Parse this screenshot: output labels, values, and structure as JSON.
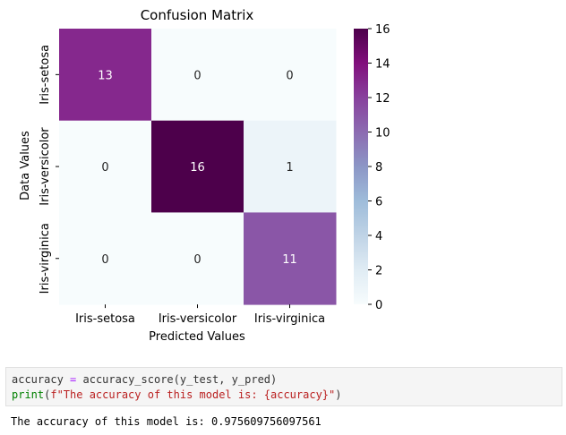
{
  "chart_data": {
    "type": "heatmap",
    "title": "Confusion Matrix",
    "xlabel": "Predicted Values",
    "ylabel": "Data Values",
    "x_categories": [
      "Iris-setosa",
      "Iris-versicolor",
      "Iris-virginica"
    ],
    "y_categories": [
      "Iris-setosa",
      "Iris-versicolor",
      "Iris-virginica"
    ],
    "values": [
      [
        13,
        0,
        0
      ],
      [
        0,
        16,
        1
      ],
      [
        0,
        0,
        11
      ]
    ],
    "colormap": "BuPu",
    "colorbar": {
      "min": 0,
      "max": 16,
      "ticks": [
        0,
        2,
        4,
        6,
        8,
        10,
        12,
        14,
        16
      ]
    }
  },
  "code_cell": {
    "line1": {
      "var": "accuracy",
      "op": "=",
      "rest": "accuracy_score(y_test, y_pred)"
    },
    "line2": {
      "func": "print",
      "open": "(",
      "fstring": "f\"The accuracy of this model is: {accuracy}\"",
      "close": ")"
    }
  },
  "output": {
    "text": "The accuracy of this model is: 0.975609756097561"
  }
}
